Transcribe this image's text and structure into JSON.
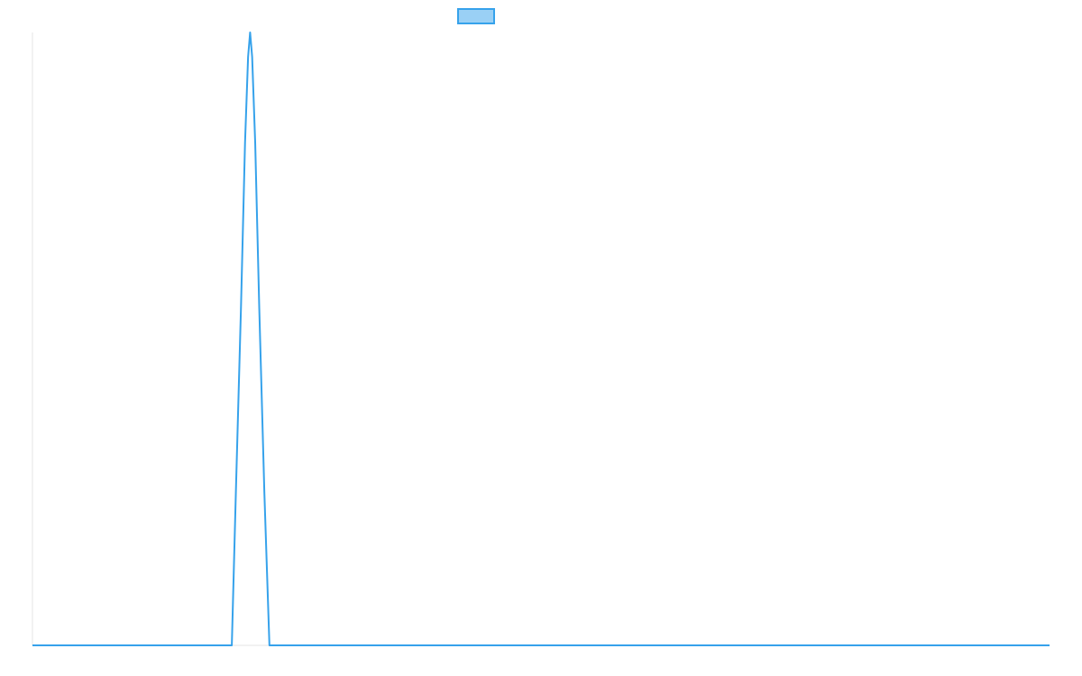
{
  "chart_data": {
    "type": "line",
    "title": "",
    "xlabel": "",
    "ylabel": "",
    "legend": {
      "position": "top-center",
      "entries": [
        {
          "name": "",
          "color": "#36a2eb",
          "fill": "#9ad0f5"
        }
      ]
    },
    "grid": false,
    "xlim": [
      0,
      100
    ],
    "ylim": [
      0,
      1
    ],
    "series": [
      {
        "name": "",
        "color": "#36a2eb",
        "x": [
          0,
          19.6,
          20.0,
          20.5,
          20.9,
          21.2,
          21.4,
          21.6,
          21.9,
          22.3,
          22.8,
          23.3,
          23.7,
          100
        ],
        "y": [
          0,
          0,
          0.25,
          0.55,
          0.82,
          0.96,
          1.0,
          0.96,
          0.82,
          0.55,
          0.25,
          0,
          0,
          0
        ]
      }
    ]
  }
}
